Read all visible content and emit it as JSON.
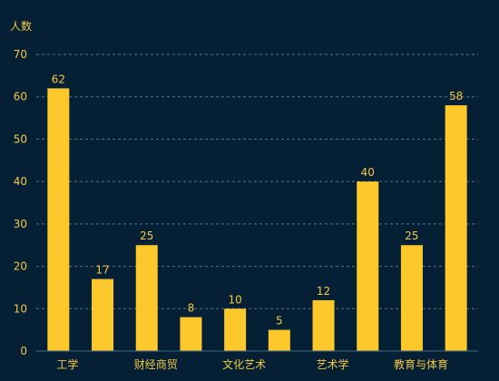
{
  "chart_data": {
    "type": "bar",
    "ylabel": "人数",
    "ylim": [
      0,
      70
    ],
    "y_ticks": [
      0,
      10,
      20,
      30,
      40,
      50,
      60,
      70
    ],
    "categories": [
      "工学",
      "",
      "财经商贸",
      "",
      "文化艺术",
      "",
      "艺术学",
      "",
      "教育与体育",
      ""
    ],
    "values": [
      62,
      17,
      25,
      8,
      10,
      5,
      12,
      40,
      25,
      58
    ],
    "grid": true,
    "show_data_labels": true,
    "colors": {
      "background": "#052034",
      "bar": "#fdc82b",
      "text": "#f5c842",
      "grid": "#5c7384",
      "axis": "#3e6a8a"
    }
  }
}
